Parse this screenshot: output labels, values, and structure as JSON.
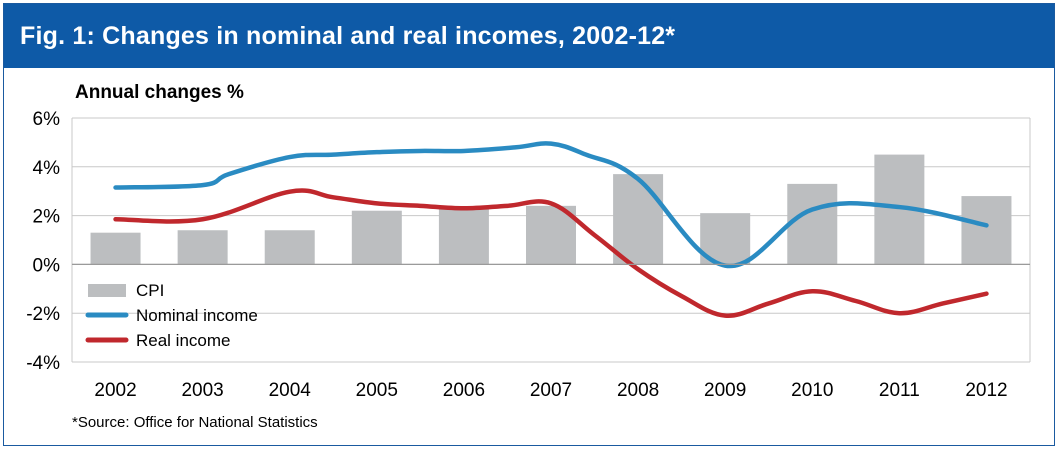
{
  "header": {
    "title": "Fig. 1: Changes in nominal and real incomes, 2002-12*"
  },
  "footer": {
    "source": "*Source: Office for National Statistics"
  },
  "colors": {
    "title_bg": "#0e5aa7",
    "cpi": "#bcbec0",
    "nominal": "#2a8bc2",
    "real": "#c0282d",
    "grid": "#c8c8c8"
  },
  "chart_data": {
    "type": "bar",
    "title": "",
    "ylabel": "Annual changes %",
    "xlabel": "",
    "categories": [
      "2002",
      "2003",
      "2004",
      "2005",
      "2006",
      "2007",
      "2008",
      "2009",
      "2010",
      "2011",
      "2012"
    ],
    "ylim": [
      -4,
      6
    ],
    "yticks": [
      -4,
      -2,
      0,
      2,
      4,
      6
    ],
    "ytick_labels": [
      "-4%",
      "-2%",
      "0%",
      "2%",
      "4%",
      "6%"
    ],
    "grid": true,
    "legend_position": "bottom-left",
    "series": [
      {
        "name": "CPI",
        "kind": "bar",
        "values": [
          1.3,
          1.4,
          1.4,
          2.2,
          2.3,
          2.4,
          3.7,
          2.1,
          3.3,
          4.5,
          2.8
        ]
      },
      {
        "name": "Nominal income",
        "kind": "line",
        "x": [
          2002,
          2003,
          2003.3,
          2004,
          2004.5,
          2005,
          2005.5,
          2006,
          2006.6,
          2007,
          2007.4,
          2008,
          2009,
          2010,
          2011,
          2012
        ],
        "values": [
          3.15,
          3.25,
          3.7,
          4.4,
          4.5,
          4.6,
          4.65,
          4.65,
          4.8,
          4.95,
          4.5,
          3.5,
          -0.05,
          2.25,
          2.35,
          1.6
        ]
      },
      {
        "name": "Real income",
        "kind": "line",
        "x": [
          2002,
          2003,
          2004,
          2004.5,
          2005,
          2005.5,
          2006,
          2006.5,
          2007,
          2007.5,
          2008,
          2008.5,
          2009,
          2009.5,
          2010,
          2010.5,
          2011,
          2011.5,
          2012
        ],
        "values": [
          1.85,
          1.85,
          2.98,
          2.75,
          2.5,
          2.4,
          2.3,
          2.4,
          2.5,
          1.2,
          -0.2,
          -1.3,
          -2.1,
          -1.6,
          -1.1,
          -1.5,
          -2.0,
          -1.6,
          -1.2
        ]
      }
    ]
  }
}
